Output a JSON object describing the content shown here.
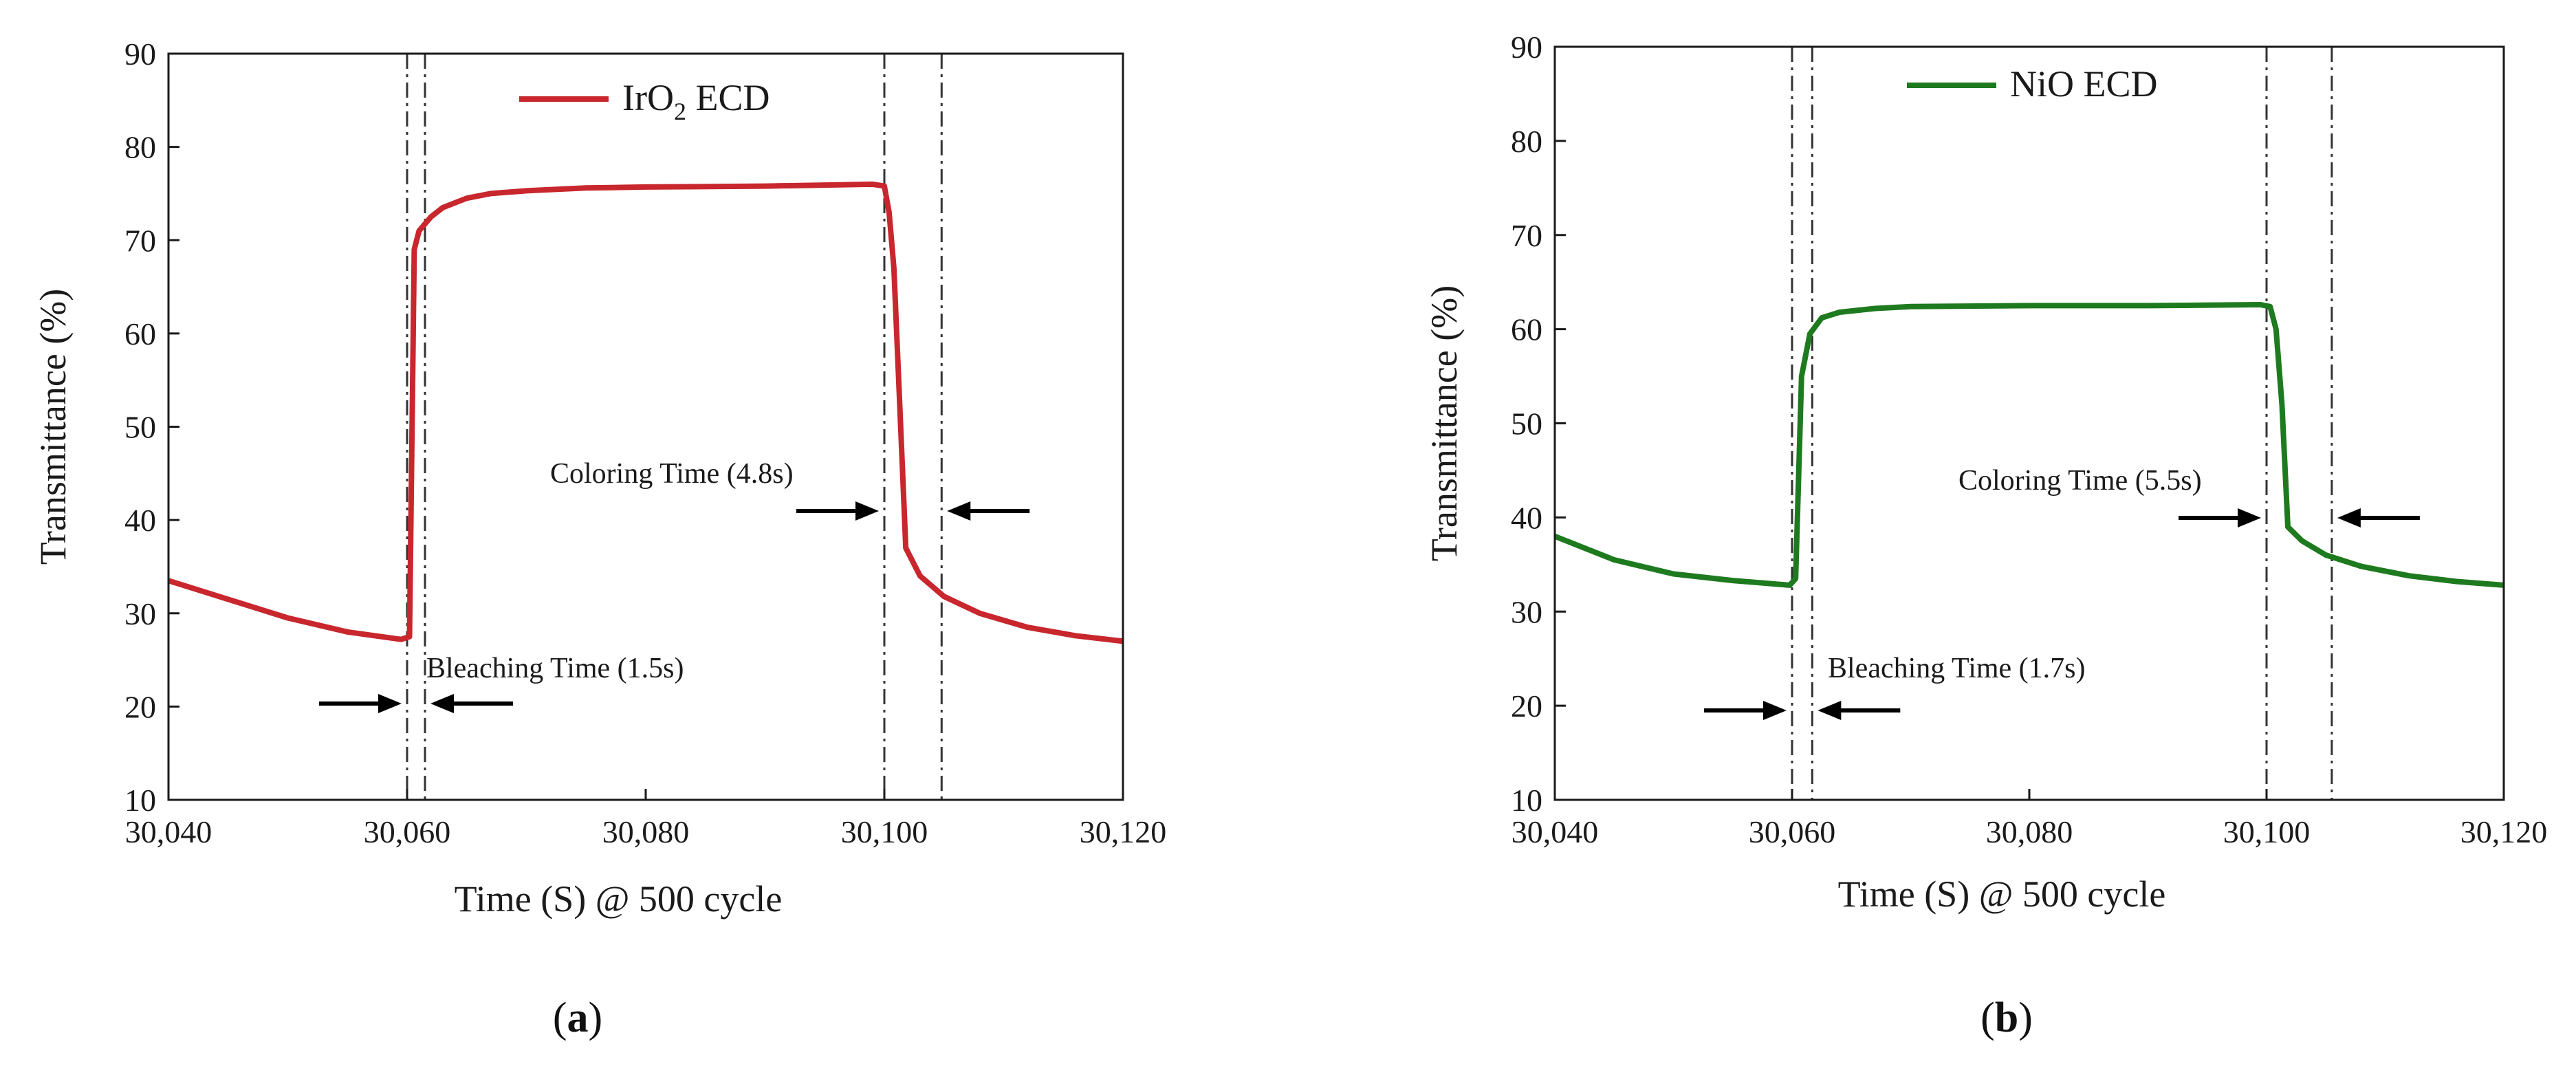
{
  "chart_data": [
    {
      "type": "line",
      "panel_label": "a",
      "legend": "IrO2 ECD",
      "color": "#c8272d",
      "xlabel": "Time (S)  @ 500 cycle",
      "ylabel": "Transmittance (%)",
      "xlim": [
        30040,
        30120
      ],
      "ylim": [
        10,
        90
      ],
      "xticks": [
        "30,040",
        "30,060",
        "30,080",
        "30,100",
        "30,120"
      ],
      "yticks": [
        "10",
        "20",
        "30",
        "40",
        "50",
        "60",
        "70",
        "80",
        "90"
      ],
      "x": [
        30040,
        30045,
        30050,
        30055,
        30059.5,
        30060.2,
        30060.6,
        30061,
        30062,
        30063,
        30065,
        30067,
        30070,
        30075,
        30080,
        30090,
        30099,
        30100,
        30100.4,
        30100.8,
        30101.3,
        30101.8,
        30103,
        30105,
        30108,
        30112,
        30116,
        30120
      ],
      "y": [
        33.5,
        31.5,
        29.5,
        28,
        27.2,
        27.5,
        69,
        71,
        72.5,
        73.5,
        74.5,
        75,
        75.3,
        75.6,
        75.7,
        75.8,
        76,
        75.8,
        73,
        67,
        52,
        37,
        34,
        31.8,
        30,
        28.5,
        27.6,
        27
      ],
      "vlines": [
        30060,
        30061.5,
        30100,
        30104.8
      ],
      "annotations": {
        "bleaching": "Bleaching Time (1.5s)",
        "coloring": "Coloring Time (4.8s)"
      }
    },
    {
      "type": "line",
      "panel_label": "b",
      "legend": "NiO ECD",
      "color": "#1e7a1e",
      "xlabel": "Time (S)  @ 500 cycle",
      "ylabel": "Transmittance (%)",
      "xlim": [
        30040,
        30120
      ],
      "ylim": [
        10,
        90
      ],
      "xticks": [
        "30,040",
        "30,060",
        "30,080",
        "30,100",
        "30,120"
      ],
      "yticks": [
        "10",
        "20",
        "30",
        "40",
        "50",
        "60",
        "70",
        "80",
        "90"
      ],
      "x": [
        30040,
        30045,
        30050,
        30055,
        30059.8,
        30060.3,
        30060.8,
        30061.5,
        30062.5,
        30064,
        30067,
        30070,
        30080,
        30090,
        30099.5,
        30100.3,
        30100.8,
        30101.3,
        30101.8,
        30103,
        30105,
        30108,
        30112,
        30116,
        30120
      ],
      "y": [
        38,
        35.5,
        34,
        33.3,
        32.8,
        33.5,
        55,
        59.5,
        61.2,
        61.8,
        62.2,
        62.4,
        62.5,
        62.5,
        62.6,
        62.4,
        60,
        52,
        39,
        37.5,
        36,
        34.8,
        33.8,
        33.2,
        32.8
      ],
      "vlines": [
        30060,
        30061.7,
        30100,
        30105.5
      ],
      "annotations": {
        "bleaching": "Bleaching Time (1.7s)",
        "coloring": "Coloring Time (5.5s)"
      }
    }
  ]
}
